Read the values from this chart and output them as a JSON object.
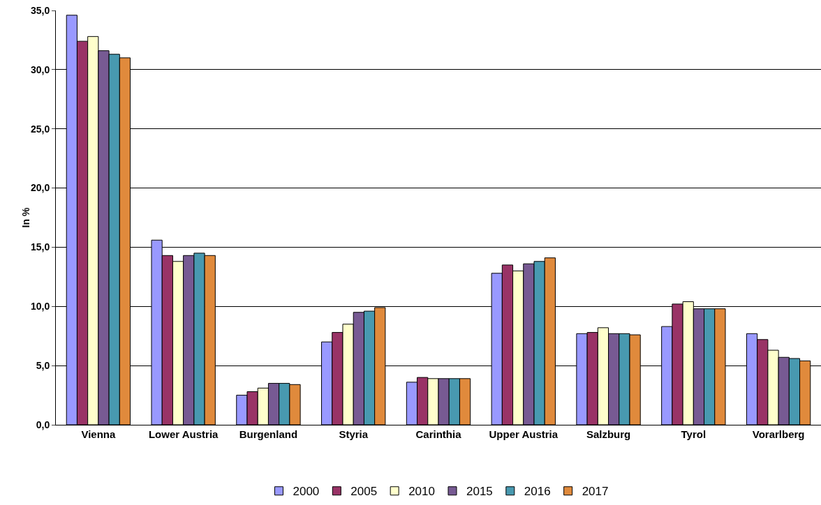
{
  "chart_data": {
    "type": "bar",
    "ylabel": "In %",
    "categories": [
      "Vienna",
      "Lower Austria",
      "Burgenland",
      "Styria",
      "Carinthia",
      "Upper Austria",
      "Salzburg",
      "Tyrol",
      "Vorarlberg"
    ],
    "series": [
      {
        "name": "2000",
        "color": "#9999ff",
        "values": [
          34.6,
          15.6,
          2.5,
          7.0,
          3.6,
          12.8,
          7.7,
          8.3,
          7.7
        ]
      },
      {
        "name": "2005",
        "color": "#993366",
        "values": [
          32.4,
          14.3,
          2.8,
          7.8,
          4.0,
          13.5,
          7.8,
          10.2,
          7.2
        ]
      },
      {
        "name": "2010",
        "color": "#ffffcc",
        "values": [
          32.8,
          13.8,
          3.1,
          8.5,
          3.9,
          13.0,
          8.2,
          10.4,
          6.3
        ]
      },
      {
        "name": "2015",
        "color": "#775a93",
        "values": [
          31.6,
          14.3,
          3.5,
          9.5,
          3.9,
          13.6,
          7.7,
          9.8,
          5.7
        ]
      },
      {
        "name": "2016",
        "color": "#4899b0",
        "values": [
          31.3,
          14.5,
          3.5,
          9.6,
          3.9,
          13.8,
          7.7,
          9.8,
          5.6
        ]
      },
      {
        "name": "2017",
        "color": "#e08a3c",
        "values": [
          31.0,
          14.3,
          3.4,
          9.9,
          3.9,
          14.1,
          7.6,
          9.8,
          5.4
        ]
      }
    ],
    "ylim": [
      0,
      35
    ],
    "yticks": [
      {
        "value": 0,
        "label": "0,0"
      },
      {
        "value": 5,
        "label": "5,0"
      },
      {
        "value": 10,
        "label": "10,0"
      },
      {
        "value": 15,
        "label": "15,0"
      },
      {
        "value": 20,
        "label": "20,0"
      },
      {
        "value": 25,
        "label": "25,0"
      },
      {
        "value": 30,
        "label": "30,0"
      },
      {
        "value": 35,
        "label": "35,0"
      }
    ],
    "grid": "y",
    "legend": "bottom"
  }
}
